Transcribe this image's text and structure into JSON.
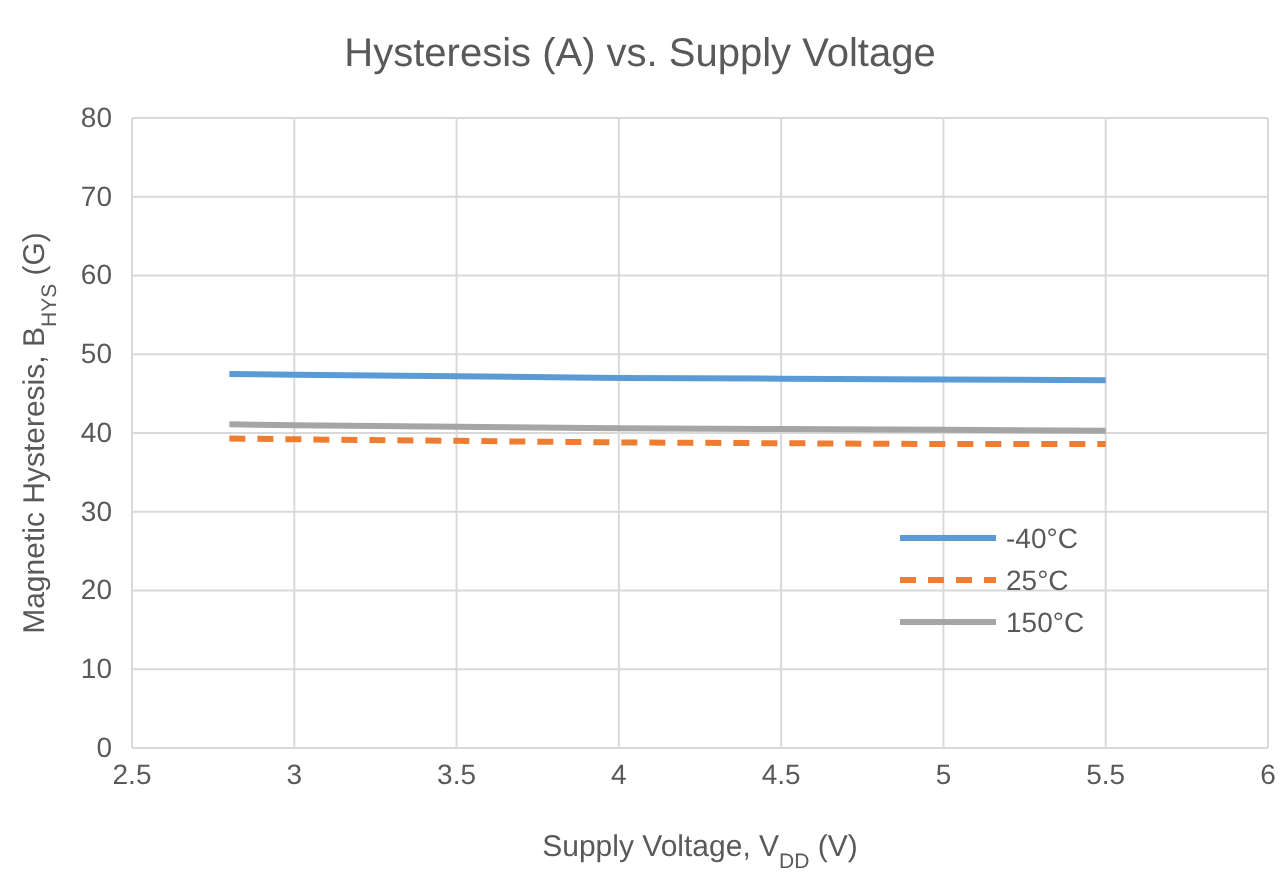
{
  "chart_data": {
    "type": "line",
    "title": "Hysteresis (A) vs. Supply Voltage",
    "xlabel": "Supply Voltage, V$_{DD}$ (V)",
    "ylabel": "Magnetic Hysteresis, B$_{HYS}$ (G)",
    "x": [
      2.8,
      3,
      3.5,
      4,
      4.5,
      5,
      5.5
    ],
    "series": [
      {
        "name": "-40°C",
        "color": "#5b9bd5",
        "line_style": "solid",
        "values": [
          47.5,
          47.4,
          47.2,
          47,
          46.9,
          46.8,
          46.7
        ]
      },
      {
        "name": "25°C",
        "color": "#ed7d31",
        "line_style": "dashed",
        "values": [
          39.3,
          39.2,
          39,
          38.8,
          38.7,
          38.6,
          38.6
        ]
      },
      {
        "name": "150°C",
        "color": "#a5a5a5",
        "line_style": "solid",
        "values": [
          41.1,
          41,
          40.8,
          40.6,
          40.5,
          40.4,
          40.3
        ]
      }
    ],
    "xlim": [
      2.5,
      6
    ],
    "xticks": [
      2.5,
      3,
      3.5,
      4,
      4.5,
      5,
      5.5,
      6
    ],
    "ylim": [
      0,
      80
    ],
    "yticks": [
      0,
      10,
      20,
      30,
      40,
      50,
      60,
      70,
      80
    ],
    "grid": true,
    "legend": "right",
    "marker": "none"
  }
}
